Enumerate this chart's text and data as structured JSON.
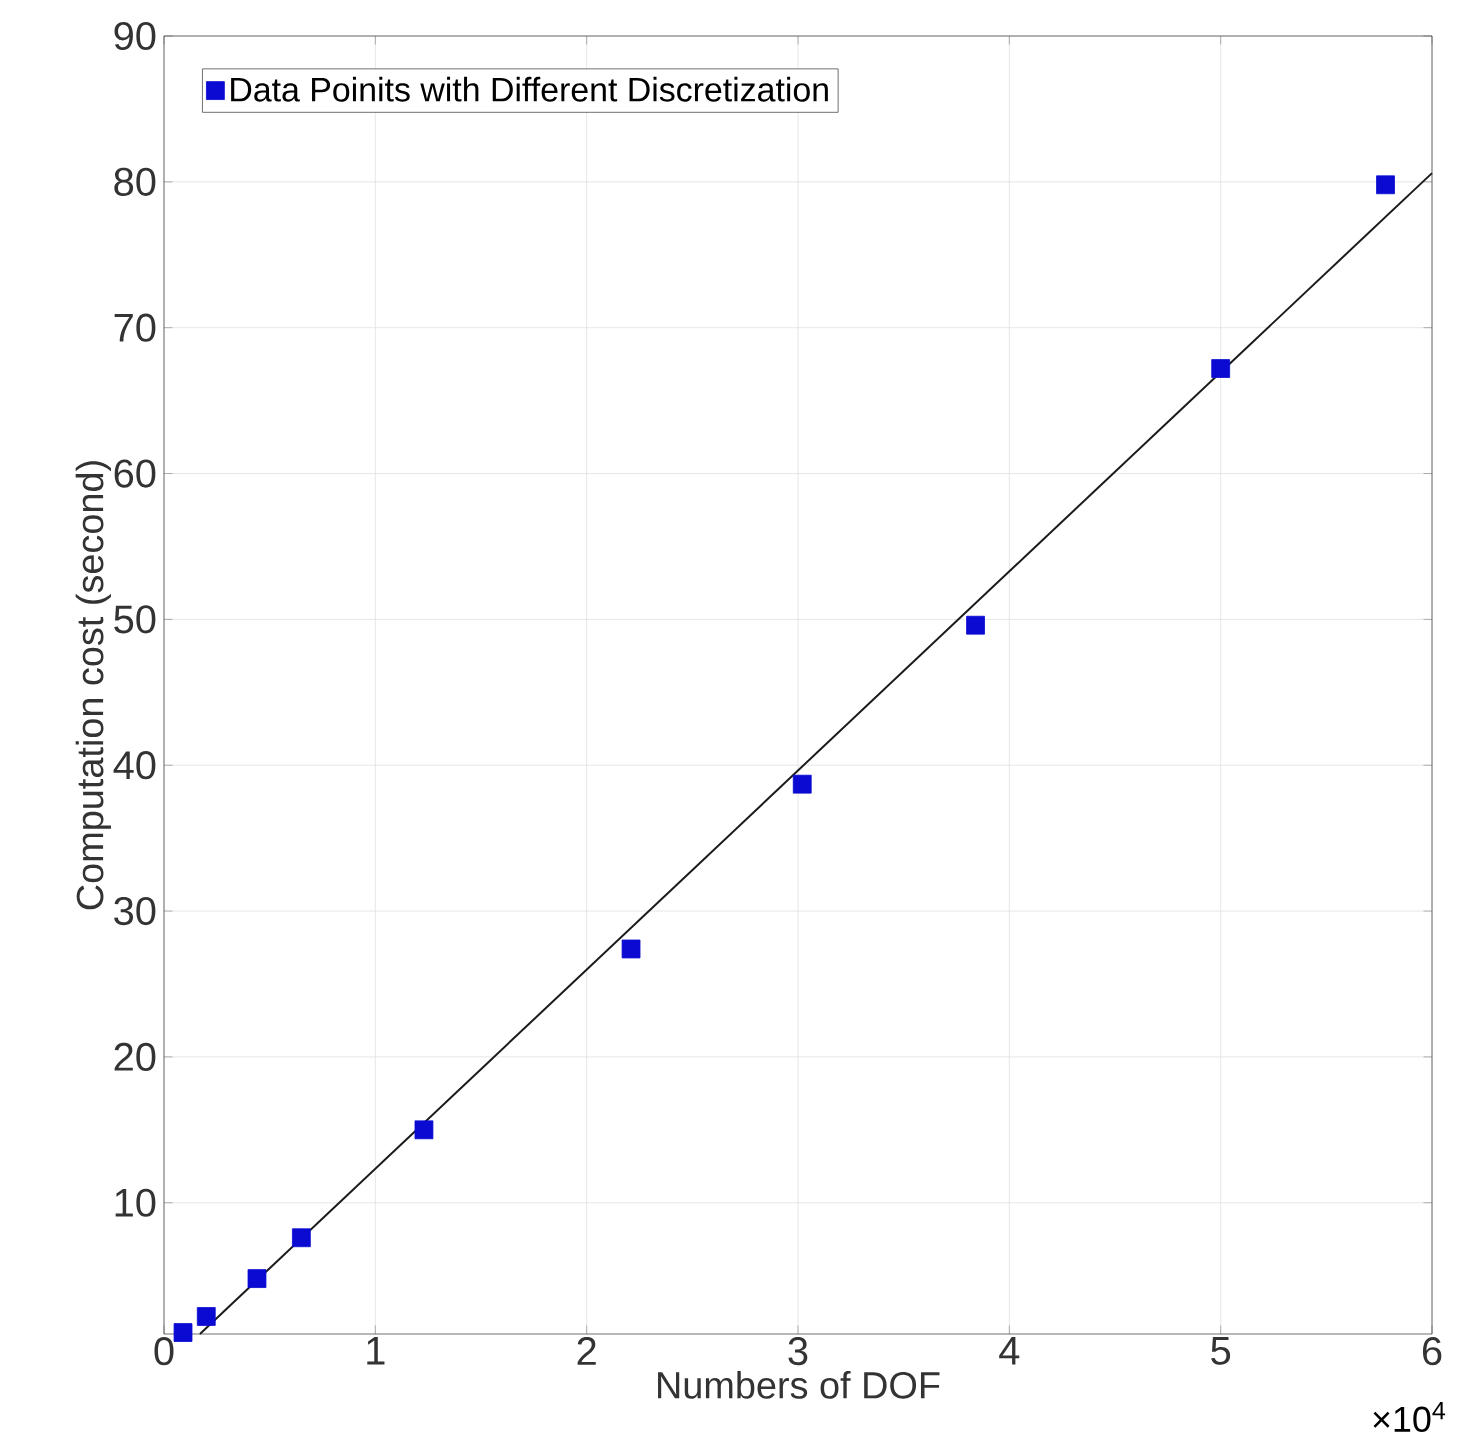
{
  "chart_data": {
    "type": "scatter",
    "xlabel": "Numbers of DOF",
    "ylabel": "Computation cost (second)",
    "annotations": [
      "×10$^{4}$"
    ],
    "xlim": [
      0,
      6
    ],
    "xticks": [
      0,
      1,
      2,
      3,
      4,
      5,
      6
    ],
    "ylim": [
      1,
      90
    ],
    "yticks": [
      10,
      20,
      30,
      40,
      50,
      60,
      70,
      80,
      90
    ],
    "grid": true,
    "legend": "top left",
    "series": [
      {
        "name": "Data Poinits with Different Discretization",
        "color": "#0a0ad2",
        "marker": "square",
        "x": [
          0.09,
          0.2,
          0.44,
          0.65,
          1.23,
          2.21,
          3.02,
          3.84,
          5.0,
          5.78
        ],
        "values": [
          1.1,
          2.2,
          4.8,
          7.6,
          15.0,
          27.4,
          38.7,
          49.6,
          67.2,
          79.8
        ]
      },
      {
        "type": "line",
        "color": "#1a1a1a",
        "line_style": "solid",
        "x": [
          0.17,
          6
        ],
        "values": [
          1,
          80.6
        ]
      }
    ]
  }
}
